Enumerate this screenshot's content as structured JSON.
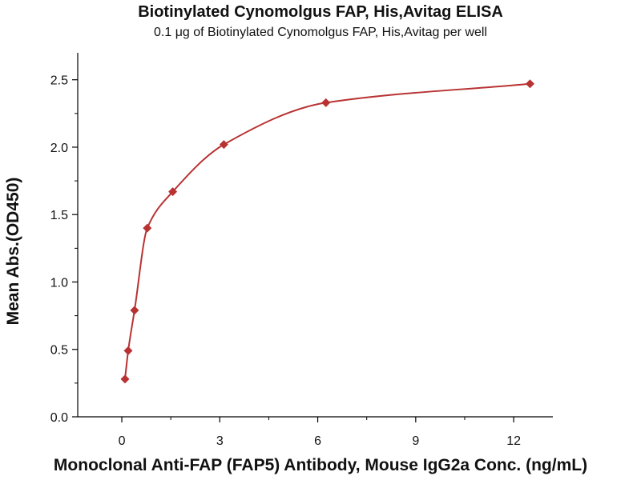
{
  "chart_data": {
    "type": "scatter",
    "title": "Biotinylated Cynomolgus FAP, His,Avitag ELISA",
    "subtitle": "0.1 μg of Biotinylated Cynomolgus FAP, His,Avitag per well",
    "xlabel": "Monoclonal Anti-FAP (FAP5) Antibody, Mouse IgG2a Conc. (ng/mL)",
    "ylabel": "Mean Abs.(OD450)",
    "xlim": [
      -1.35,
      13.2
    ],
    "ylim": [
      0,
      2.7
    ],
    "x_ticks": [
      "0",
      "3",
      "6",
      "9",
      "12"
    ],
    "x_tick_values": [
      0,
      3,
      6,
      9,
      12
    ],
    "y_ticks": [
      "0.0",
      "0.5",
      "1.0",
      "1.5",
      "2.0",
      "2.5"
    ],
    "y_tick_values": [
      0,
      0.5,
      1.0,
      1.5,
      2.0,
      2.5
    ],
    "grid": false,
    "series": [
      {
        "color": "#b83232",
        "marker": "diamond",
        "fit": "curve",
        "points": [
          {
            "x": 0.098,
            "y": 0.28
          },
          {
            "x": 0.195,
            "y": 0.49
          },
          {
            "x": 0.39,
            "y": 0.79
          },
          {
            "x": 0.78,
            "y": 1.4
          },
          {
            "x": 1.56,
            "y": 1.67
          },
          {
            "x": 3.125,
            "y": 2.02
          },
          {
            "x": 6.25,
            "y": 2.33
          },
          {
            "x": 12.5,
            "y": 2.47
          }
        ]
      }
    ]
  }
}
